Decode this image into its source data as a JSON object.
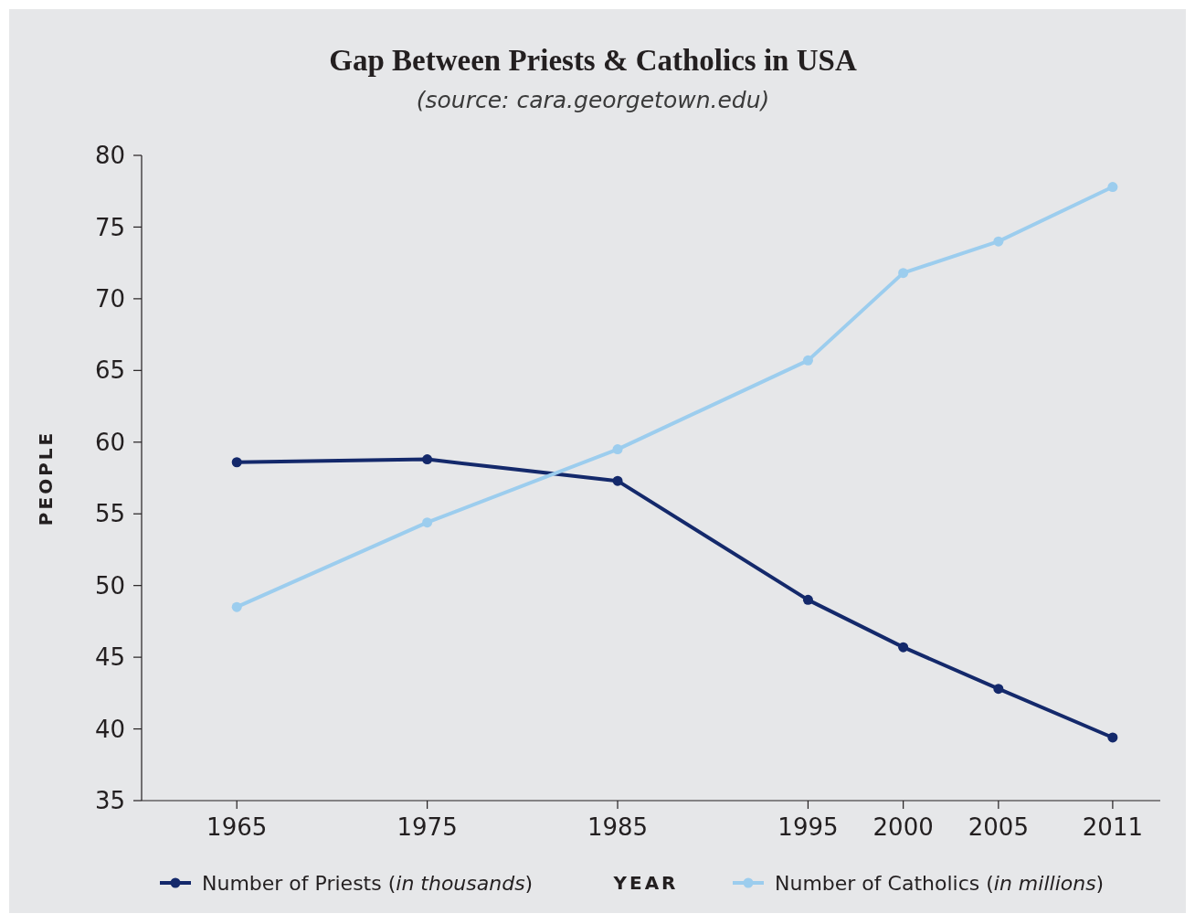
{
  "chart_data": {
    "type": "line",
    "title": "Gap Between Priests & Catholics in USA",
    "subtitle": "(source: cara.georgetown.edu)",
    "xlabel": "YEAR",
    "ylabel": "PEOPLE",
    "x": [
      1965,
      1975,
      1985,
      1995,
      2000,
      2005,
      2011
    ],
    "series": [
      {
        "name": "Number of Priests (in thousands)",
        "color": "#14296b",
        "values": [
          58.6,
          58.8,
          57.3,
          49.0,
          45.7,
          42.8,
          39.4
        ]
      },
      {
        "name": "Number of Catholics (in millions)",
        "color": "#9ccdee",
        "values": [
          48.5,
          54.4,
          59.5,
          65.7,
          71.8,
          74.0,
          77.8
        ]
      }
    ],
    "xlim": [
      1960,
      2013.5
    ],
    "xticks": [
      1965,
      1975,
      1985,
      1995,
      2000,
      2005,
      2011
    ],
    "ylim": [
      35,
      80
    ],
    "yticks": [
      35,
      40,
      45,
      50,
      55,
      60,
      65,
      70,
      75,
      80
    ],
    "grid": false,
    "legend": "bottom",
    "marker": "circle",
    "line_style": "solid"
  }
}
